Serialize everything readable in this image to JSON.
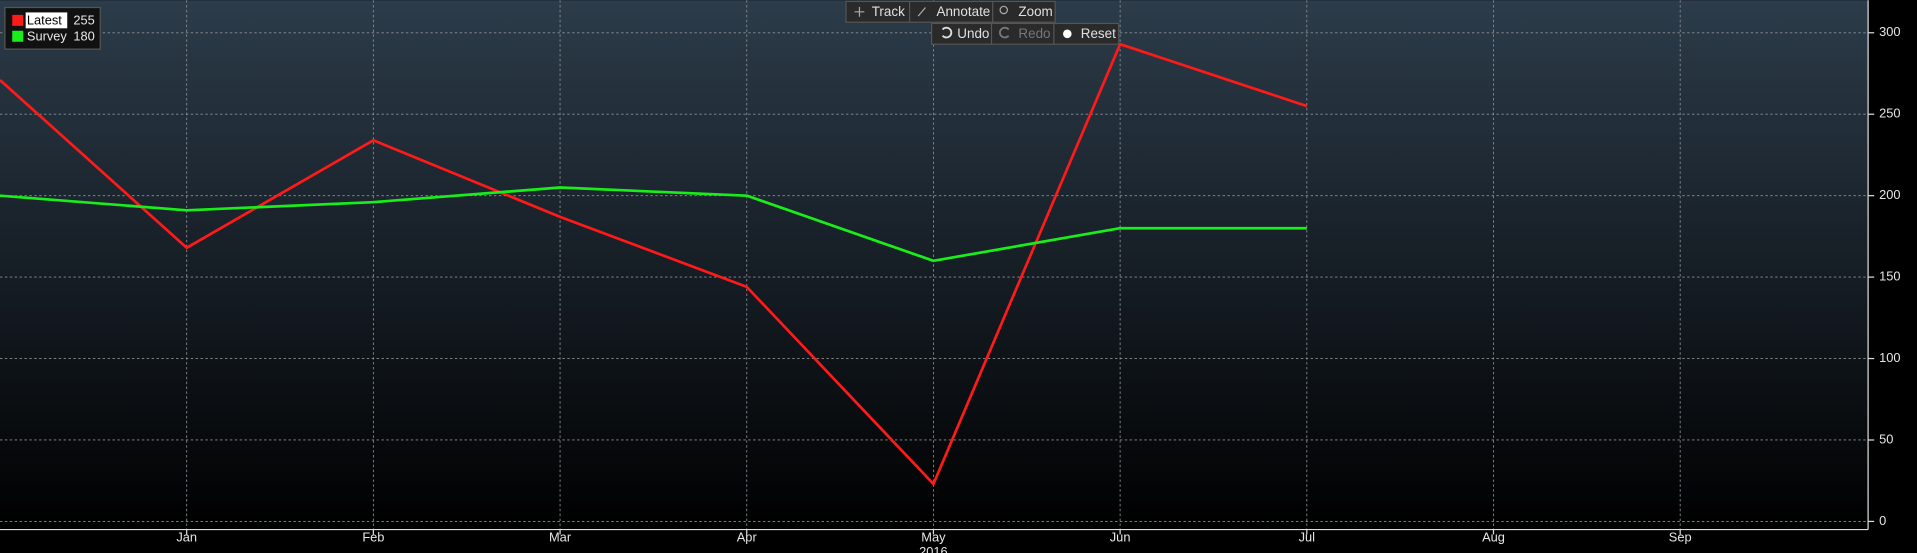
{
  "toolbar": [
    "Track",
    "Annotate",
    "Zoom"
  ],
  "toolbar2": [
    "Undo",
    "Redo",
    "Reset"
  ],
  "chart_data": {
    "type": "line",
    "categories": [
      null,
      "Jan",
      "Feb",
      "Mar",
      "Apr",
      "May",
      "Jun",
      "Jul",
      "Aug",
      "Sep"
    ],
    "x_label": "2016",
    "series": [
      {
        "name": "Latest",
        "color": "#ff1a1a",
        "values": [
          271,
          168,
          234,
          187,
          144,
          23,
          293,
          255,
          null,
          null
        ]
      },
      {
        "name": "Survey",
        "color": "#1aee1a",
        "values": [
          200,
          191,
          196,
          205,
          200,
          160,
          180,
          180,
          null,
          null
        ]
      }
    ],
    "ylim": [
      -5,
      320
    ],
    "yticks": [
      0,
      50,
      100,
      150,
      200,
      250,
      300
    ],
    "grid": true,
    "legend": "top-left"
  }
}
